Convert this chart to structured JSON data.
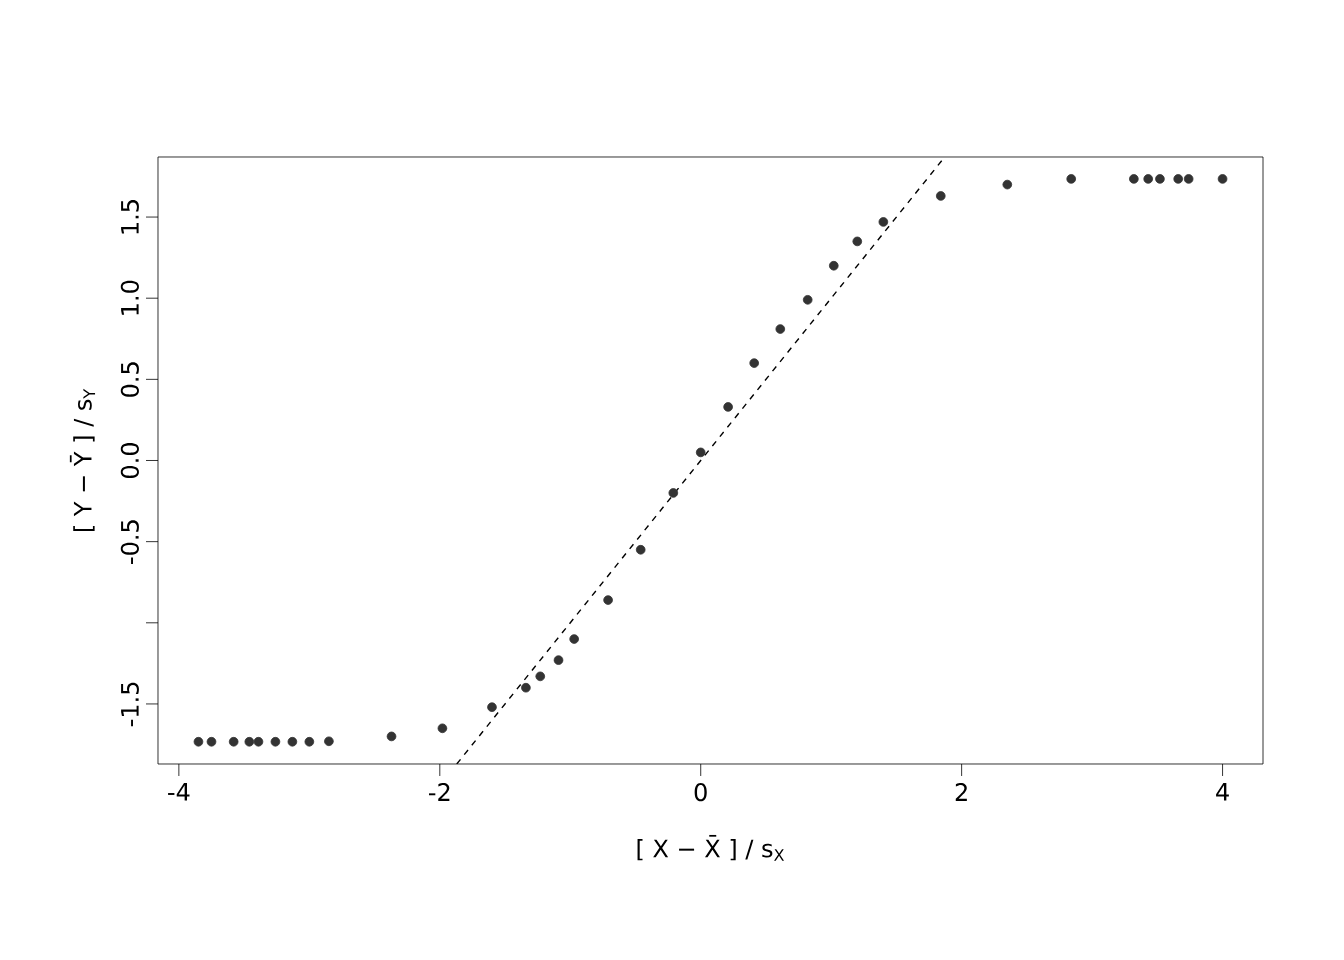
{
  "chart_data": {
    "type": "scatter",
    "xlabel": "[ X − X̄ ] / s$_{X}$",
    "ylabel": "[ Y − Ȳ ] / s$_{Y}$",
    "xlim": [
      -4.16,
      4.31
    ],
    "ylim": [
      -1.87,
      1.87
    ],
    "xticks": [
      -4,
      -2,
      0,
      2,
      4
    ],
    "yticks": [
      {
        "value": -1.5,
        "label": "-1.5"
      },
      {
        "value": -1.0,
        "label": null
      },
      {
        "value": -0.5,
        "label": "-0.5"
      },
      {
        "value": 0,
        "label": "0.0"
      },
      {
        "value": 0.5,
        "label": "0.5"
      },
      {
        "value": 1.0,
        "label": "1.0"
      },
      {
        "value": 1.5,
        "label": "1.5"
      }
    ],
    "grid": false,
    "series": [
      {
        "color": "#333333",
        "marker": "circle",
        "x": [
          -3.85,
          -3.75,
          -3.58,
          -3.46,
          -3.39,
          -3.26,
          -3.13,
          -3.0,
          -2.85,
          -2.37,
          -1.98,
          -1.6,
          -1.34,
          -1.23,
          -1.09,
          -0.97,
          -0.71,
          -0.46,
          -0.21,
          0.0,
          0.21,
          0.41,
          0.61,
          0.82,
          1.02,
          1.2,
          1.4,
          1.84,
          2.35,
          2.84,
          3.32,
          3.43,
          3.52,
          3.66,
          3.74,
          4.0
        ],
        "values": [
          -1.733,
          -1.733,
          -1.733,
          -1.733,
          -1.733,
          -1.733,
          -1.733,
          -1.733,
          -1.73,
          -1.7,
          -1.65,
          -1.52,
          -1.4,
          -1.33,
          -1.23,
          -1.1,
          -0.86,
          -0.55,
          -0.2,
          0.05,
          0.33,
          0.6,
          0.81,
          0.99,
          1.2,
          1.35,
          1.47,
          1.63,
          1.7,
          1.735,
          1.735,
          1.735,
          1.735,
          1.735,
          1.735,
          1.735
        ]
      },
      {
        "type": "line",
        "color": "#000000",
        "line_style": "dashed",
        "marker": "none",
        "x": [
          -1.87,
          1.87
        ],
        "values": [
          -1.87,
          1.87
        ]
      }
    ]
  }
}
